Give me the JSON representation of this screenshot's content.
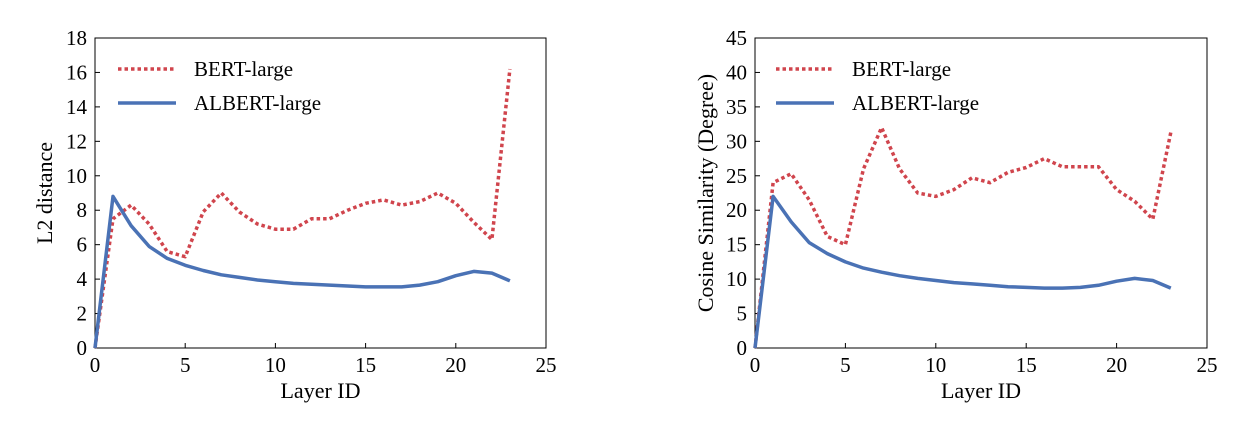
{
  "chart_data": [
    {
      "type": "line",
      "title": "",
      "xlabel": "Layer ID",
      "ylabel": "L2 distance",
      "xlim": [
        0,
        25
      ],
      "ylim": [
        0,
        18
      ],
      "xticks": [
        0,
        5,
        10,
        15,
        20,
        25
      ],
      "yticks": [
        0,
        2,
        4,
        6,
        8,
        10,
        12,
        14,
        16,
        18
      ],
      "legend_position": "top-left",
      "grid": false,
      "x": [
        0,
        1,
        2,
        3,
        4,
        5,
        6,
        7,
        8,
        9,
        10,
        11,
        12,
        13,
        14,
        15,
        16,
        17,
        18,
        19,
        20,
        21,
        22,
        23
      ],
      "series": [
        {
          "name": "BERT-large",
          "style": "dotted",
          "color": "#d0454d",
          "values": [
            0,
            7.5,
            8.3,
            7.2,
            5.6,
            5.3,
            7.9,
            9.0,
            7.9,
            7.2,
            6.9,
            6.9,
            7.5,
            7.5,
            8.0,
            8.4,
            8.6,
            8.3,
            8.5,
            9.0,
            8.4,
            7.3,
            6.3,
            16.2
          ]
        },
        {
          "name": "ALBERT-large",
          "style": "solid",
          "color": "#4a72b5",
          "values": [
            0,
            8.8,
            7.1,
            5.9,
            5.2,
            4.8,
            4.5,
            4.25,
            4.1,
            3.95,
            3.85,
            3.75,
            3.7,
            3.65,
            3.6,
            3.55,
            3.55,
            3.55,
            3.65,
            3.85,
            4.2,
            4.45,
            4.35,
            3.9
          ]
        }
      ]
    },
    {
      "type": "line",
      "title": "",
      "xlabel": "Layer ID",
      "ylabel": "Cosine Similarity (Degree)",
      "xlim": [
        0,
        25
      ],
      "ylim": [
        0,
        45
      ],
      "xticks": [
        0,
        5,
        10,
        15,
        20,
        25
      ],
      "yticks": [
        0,
        5,
        10,
        15,
        20,
        25,
        30,
        35,
        40,
        45
      ],
      "legend_position": "top-left",
      "grid": false,
      "x": [
        0,
        1,
        2,
        3,
        4,
        5,
        6,
        7,
        8,
        9,
        10,
        11,
        12,
        13,
        14,
        15,
        16,
        17,
        18,
        19,
        20,
        21,
        22,
        23
      ],
      "series": [
        {
          "name": "BERT-large",
          "style": "dotted",
          "color": "#d0454d",
          "values": [
            0,
            24.0,
            25.3,
            21.5,
            16.2,
            15.0,
            26.0,
            32.0,
            26.0,
            22.5,
            22.0,
            23.0,
            24.7,
            24.0,
            25.5,
            26.2,
            27.5,
            26.3,
            26.3,
            26.3,
            23.0,
            21.3,
            18.7,
            31.3
          ]
        },
        {
          "name": "ALBERT-large",
          "style": "solid",
          "color": "#4a72b5",
          "values": [
            0,
            22.0,
            18.3,
            15.3,
            13.7,
            12.5,
            11.6,
            11.0,
            10.5,
            10.1,
            9.8,
            9.5,
            9.3,
            9.1,
            8.9,
            8.8,
            8.7,
            8.7,
            8.8,
            9.1,
            9.7,
            10.1,
            9.8,
            8.7
          ]
        }
      ]
    }
  ]
}
